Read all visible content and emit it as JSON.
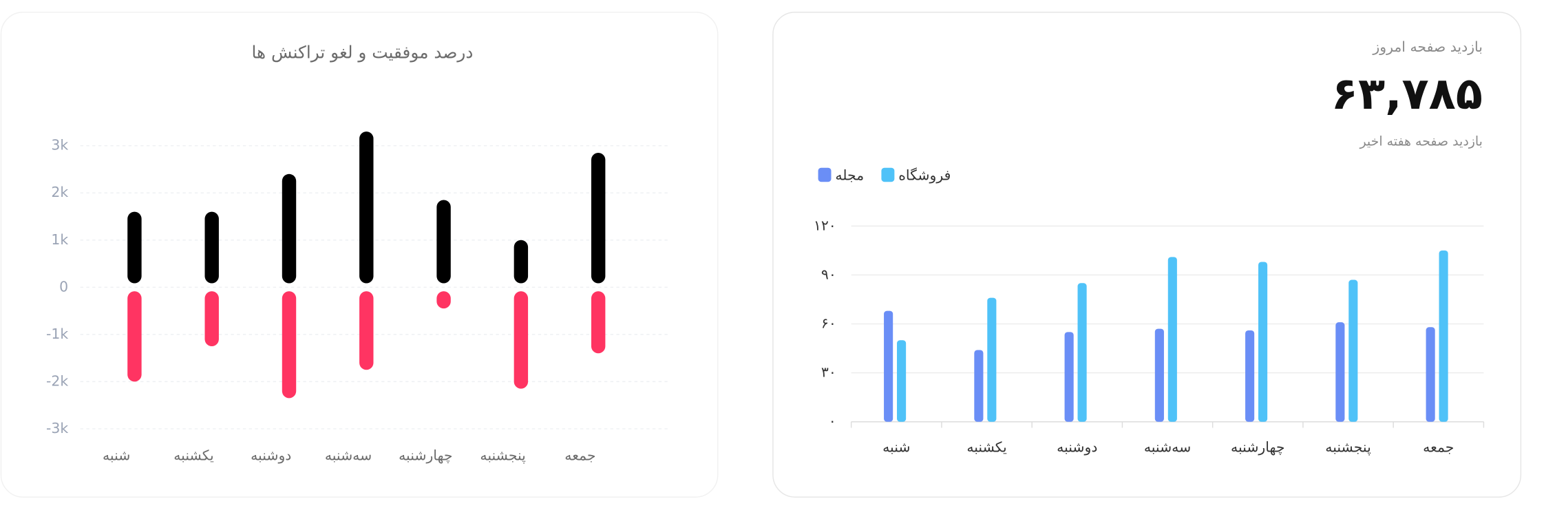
{
  "chart_data": [
    {
      "type": "bar",
      "title": "درصد موفقیت و لغو تراکنش ها",
      "categories": [
        "شنبه",
        "یکشنبه",
        "دوشنبه",
        "سه‌شنبه",
        "چهارشنبه",
        "پنجشنبه",
        "جمعه"
      ],
      "series": [
        {
          "color": "#000000",
          "values": [
            1600,
            1600,
            2400,
            3300,
            1850,
            1000,
            2850
          ]
        },
        {
          "color": "#ff3462",
          "values": [
            -2000,
            -1250,
            -2350,
            -1750,
            -450,
            -2150,
            -1400
          ]
        }
      ],
      "ylim": [
        -3000,
        3000
      ],
      "yticks": [
        {
          "value": 3000,
          "label": "3k"
        },
        {
          "value": 2000,
          "label": "2k"
        },
        {
          "value": 1000,
          "label": "1k"
        },
        0,
        {
          "value": -1000,
          "label": "-1k"
        },
        {
          "value": -2000,
          "label": "-2k"
        },
        {
          "value": -3000,
          "label": "-3k"
        }
      ],
      "grid": true
    },
    {
      "type": "grouped-bar",
      "header": "بازدید صفحه امروز",
      "kpi": "۶۳,۷۸۵",
      "subtitle": "بازدید صفحه هفته اخیر",
      "categories": [
        "شنبه",
        "یکشنبه",
        "دوشنبه",
        "سه‌شنبه",
        "چهارشنبه",
        "پنجشنبه",
        "جمعه"
      ],
      "series": [
        {
          "name": "مجله",
          "color": "#6a8ef6",
          "values": [
            68,
            44,
            55,
            57,
            56,
            61,
            58
          ]
        },
        {
          "name": "فروشگاه",
          "color": "#4fc2f8",
          "values": [
            50,
            76,
            85,
            101,
            98,
            87,
            105
          ]
        }
      ],
      "ylim": [
        0,
        120
      ],
      "yticks": [
        {
          "value": 0,
          "label": "۰"
        },
        {
          "value": 30,
          "label": "۳۰"
        },
        {
          "value": 60,
          "label": "۶۰"
        },
        {
          "value": 90,
          "label": "۹۰"
        },
        {
          "value": 120,
          "label": "۱۲۰"
        }
      ],
      "grid": true
    }
  ]
}
